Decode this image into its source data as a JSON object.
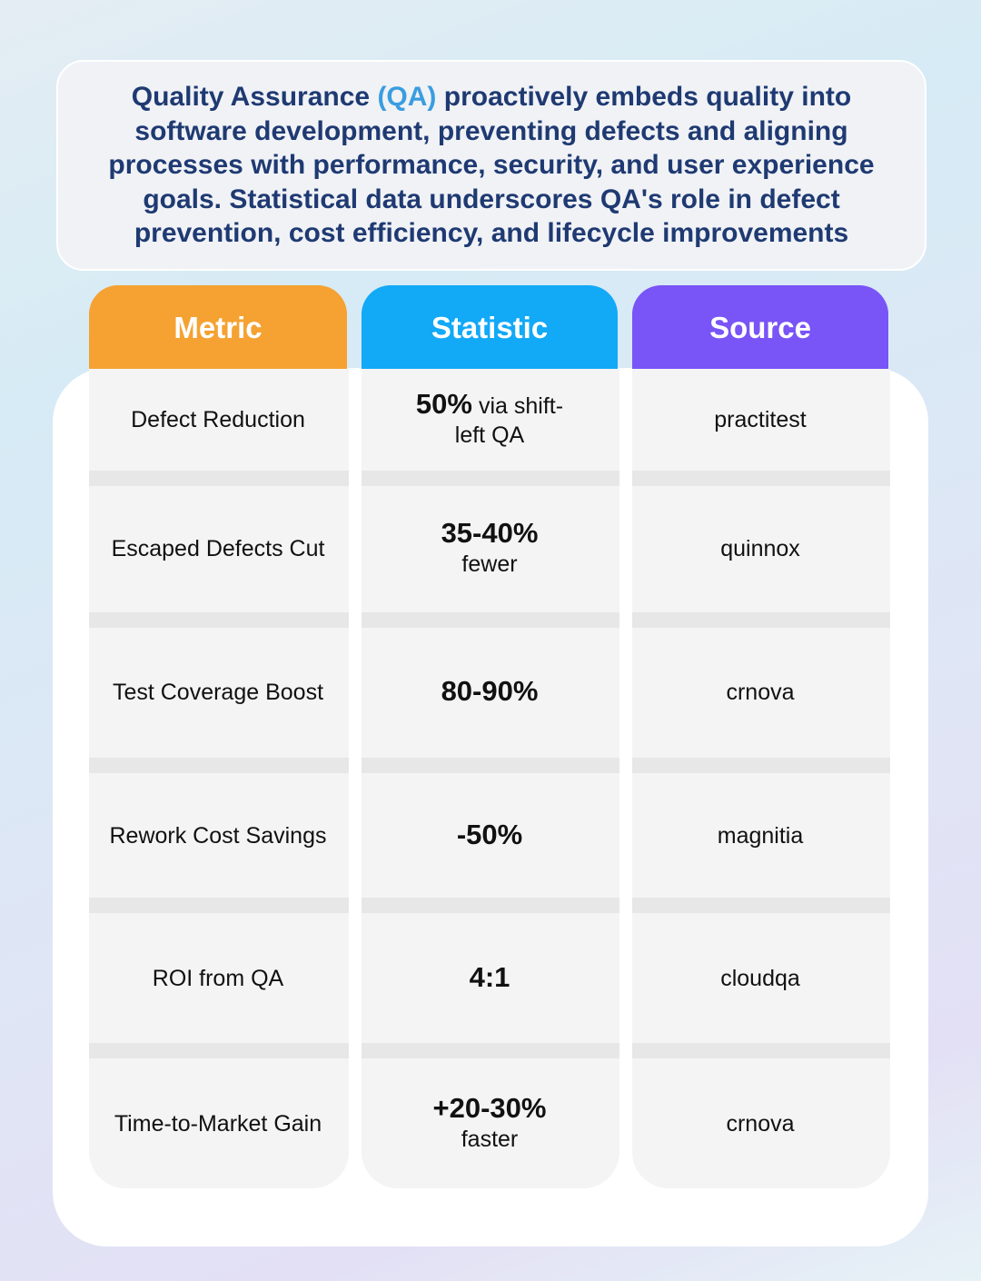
{
  "intro": {
    "lead": "Quality Assurance",
    "highlight": "(QA)",
    "rest": "proactively embeds quality into software development, preventing defects and aligning processes with performance, security, and user experience goals. Statistical data underscores QA's role in defect prevention, cost efficiency, and lifecycle improvements"
  },
  "table": {
    "headers": [
      "Metric",
      "Statistic",
      "Source"
    ],
    "rows": [
      [
        "Defect Reduction",
        {
          "bold": "50%",
          "rest": "via shift-left QA"
        },
        "practitest"
      ],
      [
        "Escaped Defects Cut",
        {
          "bold": "35-40%",
          "rest": "fewer"
        },
        "quinnox"
      ],
      [
        "Test Coverage Boost",
        {
          "bold": "80-90%"
        },
        "crnova"
      ],
      [
        "Rework Cost Savings",
        {
          "bold": "-50%"
        },
        "magnitia"
      ],
      [
        "ROI from QA",
        {
          "bold": "4:1"
        },
        "cloudqa"
      ],
      [
        "Time-to-Market Gain",
        {
          "bold": "+20-30%",
          "rest": "faster"
        },
        "crnova"
      ]
    ]
  }
}
